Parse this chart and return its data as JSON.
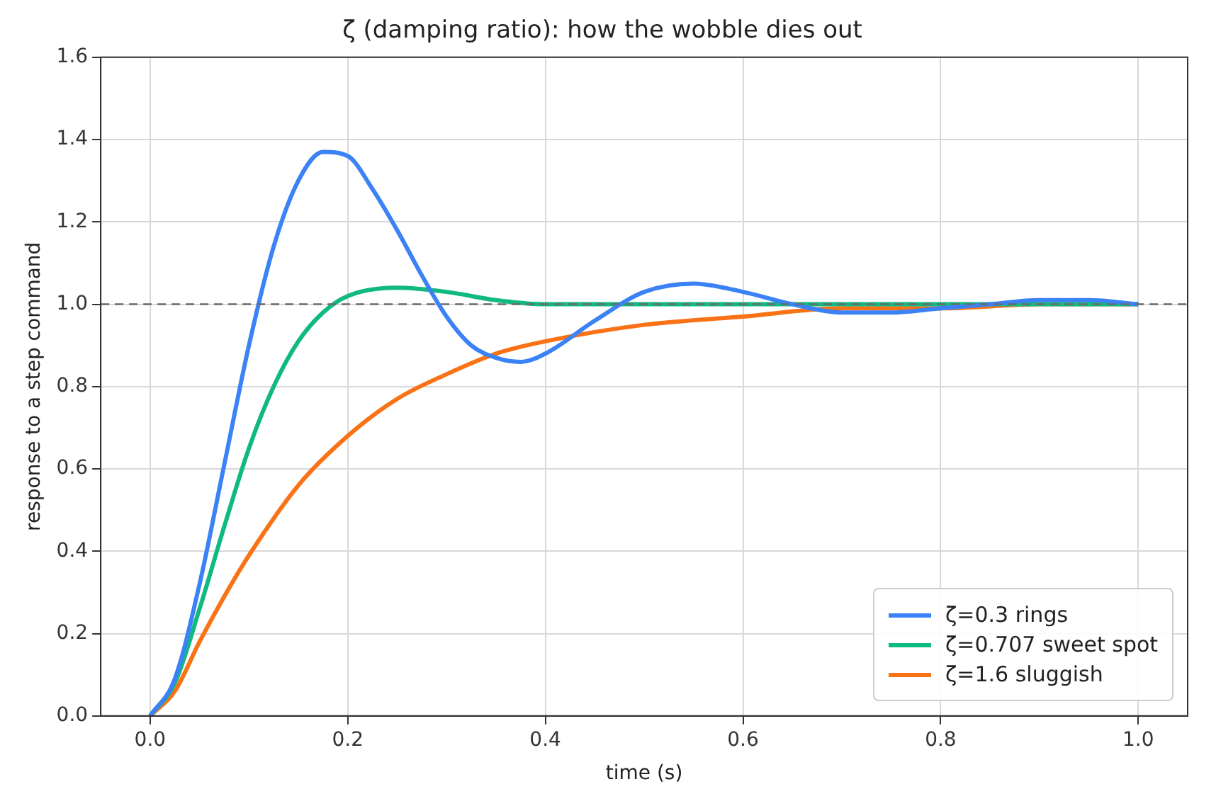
{
  "chart_data": {
    "type": "line",
    "title": "ζ (damping ratio): how the wobble dies out",
    "xlabel": "time (s)",
    "ylabel": "response to a step command",
    "xlim": [
      -0.05,
      1.05
    ],
    "ylim": [
      0,
      1.6
    ],
    "xticks": [
      {
        "value": 0,
        "label": "0.0"
      },
      {
        "value": 0.2,
        "label": "0.2"
      },
      {
        "value": 0.4,
        "label": "0.4"
      },
      {
        "value": 0.6,
        "label": "0.6"
      },
      {
        "value": 0.8,
        "label": "0.8"
      },
      {
        "value": 1,
        "label": "1.0"
      }
    ],
    "yticks": [
      {
        "value": 0,
        "label": "0.0"
      },
      {
        "value": 0.2,
        "label": "0.2"
      },
      {
        "value": 0.4,
        "label": "0.4"
      },
      {
        "value": 0.6,
        "label": "0.6"
      },
      {
        "value": 0.8,
        "label": "0.8"
      },
      {
        "value": 1,
        "label": "1.0"
      },
      {
        "value": 1.2,
        "label": "1.2"
      },
      {
        "value": 1.4,
        "label": "1.4"
      },
      {
        "value": 1.6,
        "label": "1.6"
      }
    ],
    "grid": true,
    "legend": "bottom right",
    "marker": "none",
    "line_style": "solid",
    "ref_lines": [
      {
        "axis": "y",
        "value": 1,
        "color": "#6b6b6b",
        "line_style": "dashed"
      }
    ],
    "series": [
      {
        "name": "ζ=0.3 rings",
        "color": "#3b82f6",
        "x": [
          0,
          0.025,
          0.05,
          0.075,
          0.1,
          0.125,
          0.15,
          0.175,
          0.2,
          0.225,
          0.25,
          0.275,
          0.3,
          0.325,
          0.35,
          0.375,
          0.4,
          0.45,
          0.5,
          0.55,
          0.6,
          0.65,
          0.7,
          0.75,
          0.8,
          0.85,
          0.9,
          0.95,
          1.0
        ],
        "values": [
          0,
          0.09,
          0.32,
          0.61,
          0.9,
          1.14,
          1.3,
          1.37,
          1.36,
          1.28,
          1.18,
          1.07,
          0.97,
          0.9,
          0.87,
          0.86,
          0.88,
          0.96,
          1.03,
          1.05,
          1.03,
          1.0,
          0.98,
          0.98,
          0.99,
          1.0,
          1.01,
          1.01,
          1.0
        ]
      },
      {
        "name": "ζ=0.707 sweet spot",
        "color": "#10b981",
        "x": [
          0,
          0.025,
          0.05,
          0.075,
          0.1,
          0.125,
          0.15,
          0.175,
          0.2,
          0.25,
          0.3,
          0.35,
          0.4,
          0.5,
          0.6,
          0.8,
          1.0
        ],
        "values": [
          0,
          0.08,
          0.26,
          0.46,
          0.65,
          0.8,
          0.91,
          0.98,
          1.02,
          1.04,
          1.03,
          1.01,
          1.0,
          1.0,
          1.0,
          1.0,
          1.0
        ]
      },
      {
        "name": "ζ=1.6 sluggish",
        "color": "#f97316",
        "x": [
          0,
          0.025,
          0.05,
          0.075,
          0.1,
          0.15,
          0.2,
          0.25,
          0.3,
          0.35,
          0.4,
          0.5,
          0.6,
          0.7,
          0.8,
          0.9,
          1.0
        ],
        "values": [
          0,
          0.06,
          0.18,
          0.29,
          0.39,
          0.56,
          0.68,
          0.77,
          0.83,
          0.88,
          0.91,
          0.95,
          0.97,
          0.99,
          0.99,
          1.0,
          1.0
        ]
      }
    ]
  }
}
